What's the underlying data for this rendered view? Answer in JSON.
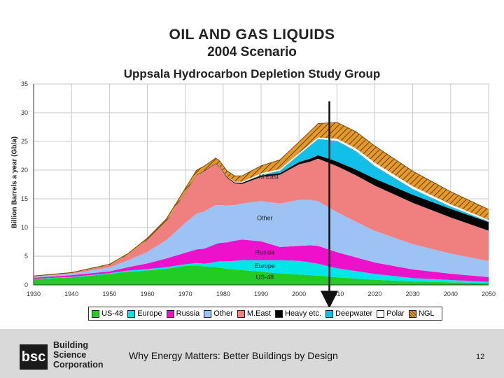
{
  "title": "OIL AND GAS LIQUIDS",
  "subtitle": "2004 Scenario",
  "org": "Uppsala Hydrocarbon Depletion Study Group",
  "footer": {
    "logo_mark": "bsc",
    "logo_lines": [
      "Building",
      "Science",
      "Corporation"
    ],
    "tagline": "Why Energy Matters: Better Buildings by Design",
    "page": "12"
  },
  "colors": {
    "us48": "#22cc22",
    "europe": "#00e5e5",
    "russia": "#ee11cc",
    "other": "#9dc3f5",
    "meast": "#f08080",
    "heavy": "#000000",
    "deepwater": "#12bfe8",
    "polar": "#ffffff",
    "ngl": "#d98c1a",
    "arrow": "#111111"
  },
  "chart_data": {
    "type": "area",
    "stacked": true,
    "ylabel": "Billion Barrels a year (Gb/a)",
    "xlabel": "",
    "xlim": [
      1930,
      2050
    ],
    "ylim": [
      0,
      35
    ],
    "xticks": [
      "1930",
      "1940",
      "1950",
      "1960",
      "1970",
      "1980",
      "1990",
      "2000",
      "2010",
      "2020",
      "2030",
      "2040",
      "2050"
    ],
    "yticks": [
      "0",
      "5",
      "10",
      "15",
      "20",
      "25",
      "30",
      "35"
    ],
    "x": [
      1930,
      1940,
      1950,
      1955,
      1960,
      1965,
      1970,
      1973,
      1975,
      1978,
      1979,
      1981,
      1983,
      1985,
      1990,
      1995,
      2000,
      2003,
      2005,
      2010,
      2015,
      2020,
      2030,
      2040,
      2050
    ],
    "series": [
      {
        "name": "US-48",
        "key": "us48",
        "values": [
          1.0,
          1.3,
          1.9,
          2.3,
          2.5,
          2.8,
          3.3,
          3.4,
          3.2,
          3.1,
          3.0,
          2.8,
          2.7,
          2.6,
          2.3,
          2.0,
          1.8,
          1.7,
          1.6,
          1.3,
          1.1,
          0.9,
          0.6,
          0.45,
          0.3
        ]
      },
      {
        "name": "Europe",
        "key": "europe",
        "values": [
          0.05,
          0.1,
          0.15,
          0.2,
          0.25,
          0.3,
          0.3,
          0.4,
          0.5,
          0.9,
          1.1,
          1.3,
          1.5,
          1.7,
          2.0,
          2.3,
          2.4,
          2.2,
          2.1,
          1.6,
          1.3,
          1.0,
          0.6,
          0.4,
          0.25
        ]
      },
      {
        "name": "Russia",
        "key": "russia",
        "values": [
          0.2,
          0.3,
          0.3,
          0.6,
          1.0,
          1.5,
          2.0,
          2.4,
          2.6,
          3.1,
          3.2,
          3.3,
          3.5,
          3.6,
          3.3,
          2.3,
          2.6,
          3.0,
          3.1,
          2.8,
          2.4,
          2.0,
          1.5,
          1.1,
          0.8
        ]
      },
      {
        "name": "Other",
        "key": "other",
        "values": [
          0.15,
          0.25,
          0.7,
          1.2,
          2.0,
          3.2,
          5.2,
          6.2,
          6.5,
          6.8,
          6.6,
          6.4,
          6.2,
          6.3,
          7.0,
          7.6,
          8.0,
          7.9,
          7.8,
          7.0,
          6.2,
          5.5,
          4.4,
          3.5,
          2.8
        ]
      },
      {
        "name": "M.East",
        "key": "meast",
        "values": [
          0.1,
          0.1,
          0.4,
          1.0,
          2.1,
          3.2,
          5.2,
          6.7,
          7.0,
          7.2,
          6.7,
          4.9,
          3.8,
          3.4,
          4.2,
          5.0,
          6.2,
          6.7,
          7.4,
          8.0,
          8.1,
          7.9,
          7.2,
          6.3,
          5.3
        ]
      },
      {
        "name": "Heavy etc.",
        "key": "heavy",
        "values": [
          0,
          0,
          0,
          0,
          0,
          0,
          0.1,
          0.1,
          0.1,
          0.1,
          0.1,
          0.15,
          0.15,
          0.2,
          0.25,
          0.3,
          0.4,
          0.5,
          0.6,
          0.8,
          1.0,
          1.2,
          1.4,
          1.5,
          1.5
        ]
      },
      {
        "name": "Deepwater",
        "key": "deepwater",
        "values": [
          0,
          0,
          0,
          0,
          0,
          0,
          0,
          0,
          0,
          0,
          0,
          0,
          0,
          0,
          0.1,
          0.4,
          1.3,
          2.3,
          2.8,
          3.6,
          3.2,
          2.2,
          1.0,
          0.4,
          0.1
        ]
      },
      {
        "name": "Polar",
        "key": "polar",
        "values": [
          0,
          0,
          0,
          0,
          0,
          0,
          0,
          0,
          0,
          0,
          0.05,
          0.1,
          0.15,
          0.2,
          0.3,
          0.3,
          0.3,
          0.3,
          0.3,
          0.4,
          0.5,
          0.6,
          0.5,
          0.4,
          0.3
        ]
      },
      {
        "name": "NGL",
        "key": "ngl",
        "values": [
          0.05,
          0.1,
          0.15,
          0.2,
          0.3,
          0.5,
          0.7,
          0.8,
          0.8,
          0.9,
          0.9,
          0.9,
          1.0,
          1.0,
          1.3,
          1.6,
          1.9,
          2.2,
          2.4,
          2.8,
          2.9,
          2.9,
          2.6,
          2.2,
          1.8
        ]
      }
    ],
    "annotations": [
      {
        "text": "M.East",
        "x": 1992,
        "y": 18.5
      },
      {
        "text": "Other",
        "x": 1991,
        "y": 11.3
      },
      {
        "text": "Russia",
        "x": 1991,
        "y": 5.3
      },
      {
        "text": "Europe",
        "x": 1991,
        "y": 2.9
      },
      {
        "text": "US-48",
        "x": 1991,
        "y": 1.0
      }
    ],
    "marker_arrow": {
      "x": 2008,
      "y_from": 32.0,
      "y_to": -3.3
    },
    "legend_position": "bottom"
  }
}
